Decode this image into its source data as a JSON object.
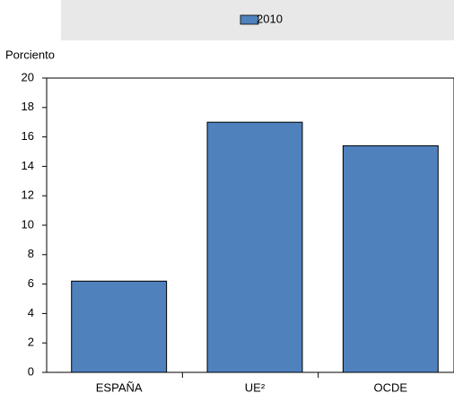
{
  "chart_data": {
    "type": "bar",
    "ylabel": "Porciento",
    "categories": [
      "ESPAÑA",
      "UE²",
      "OCDE"
    ],
    "series": [
      {
        "name": "2010",
        "color": "#4f81bd",
        "values": [
          6.2,
          17.0,
          15.4
        ]
      }
    ],
    "ylim": [
      0,
      20
    ],
    "yticks": [
      0,
      2,
      4,
      6,
      8,
      10,
      12,
      14,
      16,
      18,
      20
    ],
    "grid": false,
    "legend": "top"
  }
}
